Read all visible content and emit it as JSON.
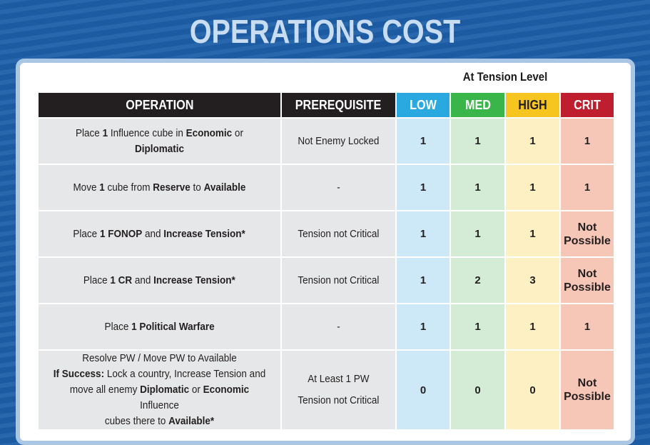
{
  "title": "OPERATIONS COST",
  "tension_label": "At Tension Level",
  "headers": {
    "operation": "OPERATION",
    "prerequisite": "PREREQUISITE",
    "low": "LOW",
    "med": "MED",
    "high": "HIGH",
    "crit": "CRIT"
  },
  "colors": {
    "background": "#1d5fa8",
    "low": "#29a9e0",
    "med": "#3ab54a",
    "high": "#f6c520",
    "crit": "#be1e2d"
  },
  "rows": [
    {
      "operation": [
        "Place ",
        "1",
        " Influence cube in ",
        "Economic",
        " or ",
        "Diplomatic"
      ],
      "prerequisite": "Not Enemy Locked",
      "low": "1",
      "med": "1",
      "high": "1",
      "crit": "1"
    },
    {
      "operation": [
        "Move ",
        "1",
        " cube from ",
        "Reserve",
        " to ",
        "Available"
      ],
      "prerequisite": "-",
      "low": "1",
      "med": "1",
      "high": "1",
      "crit": "1"
    },
    {
      "operation": [
        "Place ",
        "1 FONOP",
        " and ",
        "Increase Tension*"
      ],
      "prerequisite": "Tension not Critical",
      "low": "1",
      "med": "1",
      "high": "1",
      "crit": [
        "Not",
        "Possible"
      ]
    },
    {
      "operation": [
        "Place ",
        "1 CR",
        " and ",
        "Increase Tension*"
      ],
      "prerequisite": "Tension not Critical",
      "low": "1",
      "med": "2",
      "high": "3",
      "crit": [
        "Not",
        "Possible"
      ]
    },
    {
      "operation": [
        "Place ",
        "1 Political Warfare"
      ],
      "prerequisite": "-",
      "low": "1",
      "med": "1",
      "high": "1",
      "crit": "1"
    },
    {
      "operation": {
        "line1": "Resolve PW / Move PW to Available",
        "success_label": "If Success:",
        "line2_rest": " Lock a country, Increase Tension and",
        "line3_a": "move all enemy ",
        "line3_b": "Diplomatic",
        "line3_c": " or ",
        "line3_d": "Economic",
        "line3_e": " Influence",
        "line4_a": "cubes there to ",
        "line4_b": "Available*"
      },
      "prerequisite": [
        "At Least 1 PW",
        "Tension not Critical"
      ],
      "low": "0",
      "med": "0",
      "high": "0",
      "crit": [
        "Not",
        "Possible"
      ]
    }
  ]
}
